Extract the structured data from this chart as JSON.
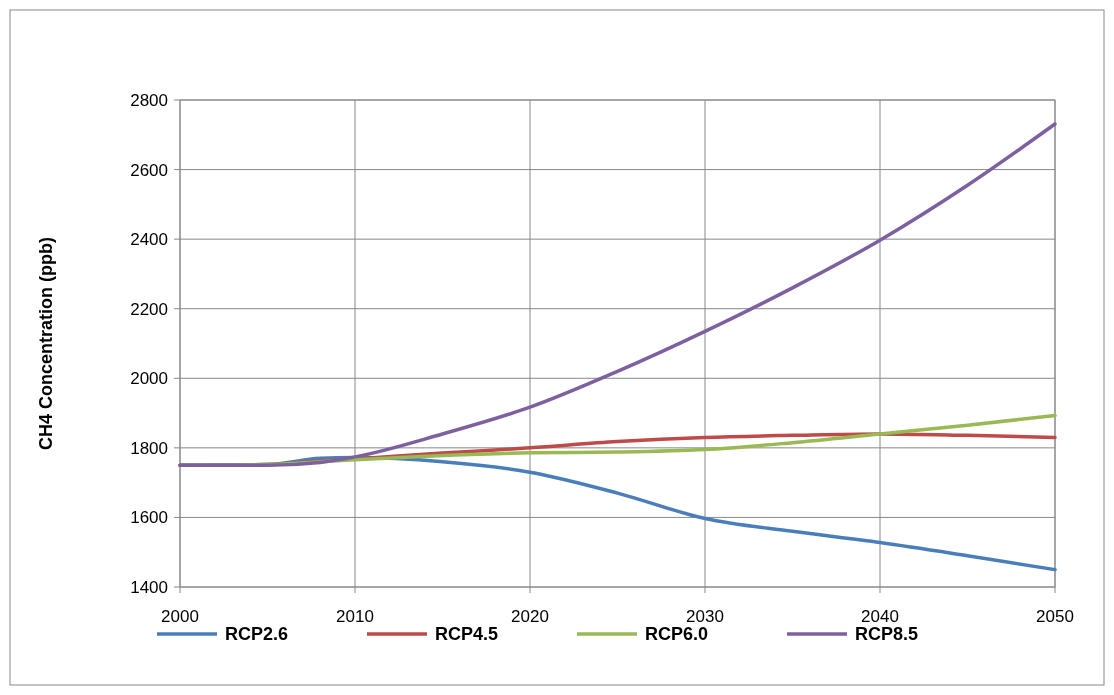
{
  "chart_data": {
    "type": "line",
    "ylabel": "CH4 Concentration (ppb)",
    "x": [
      2000,
      2005,
      2008,
      2010,
      2015,
      2020,
      2025,
      2030,
      2035,
      2040,
      2045,
      2050
    ],
    "series": [
      {
        "name": "RCP2.6",
        "color": "#4a7ebb",
        "values": [
          1750,
          1752,
          1770,
          1772,
          1760,
          1730,
          1670,
          1597,
          1560,
          1528,
          1490,
          1450
        ]
      },
      {
        "name": "RCP4.5",
        "color": "#be4b48",
        "values": [
          1750,
          1752,
          1762,
          1768,
          1785,
          1800,
          1818,
          1830,
          1836,
          1840,
          1836,
          1830
        ]
      },
      {
        "name": "RCP6.0",
        "color": "#98b954",
        "values": [
          1750,
          1752,
          1760,
          1766,
          1778,
          1786,
          1788,
          1795,
          1815,
          1840,
          1865,
          1893
        ]
      },
      {
        "name": "RCP8.5",
        "color": "#7d60a0",
        "values": [
          1750,
          1750,
          1758,
          1774,
          1840,
          1917,
          2020,
          2135,
          2260,
          2397,
          2555,
          2731
        ]
      }
    ],
    "xlim": [
      2000,
      2050
    ],
    "xticks": [
      2000,
      2010,
      2020,
      2030,
      2040,
      2050
    ],
    "ylim": [
      1400,
      2800
    ],
    "yticks": [
      1400,
      1600,
      1800,
      2000,
      2200,
      2400,
      2600,
      2800
    ],
    "grid": true,
    "legend": "bottom",
    "marker": "none",
    "line_style": "solid"
  }
}
